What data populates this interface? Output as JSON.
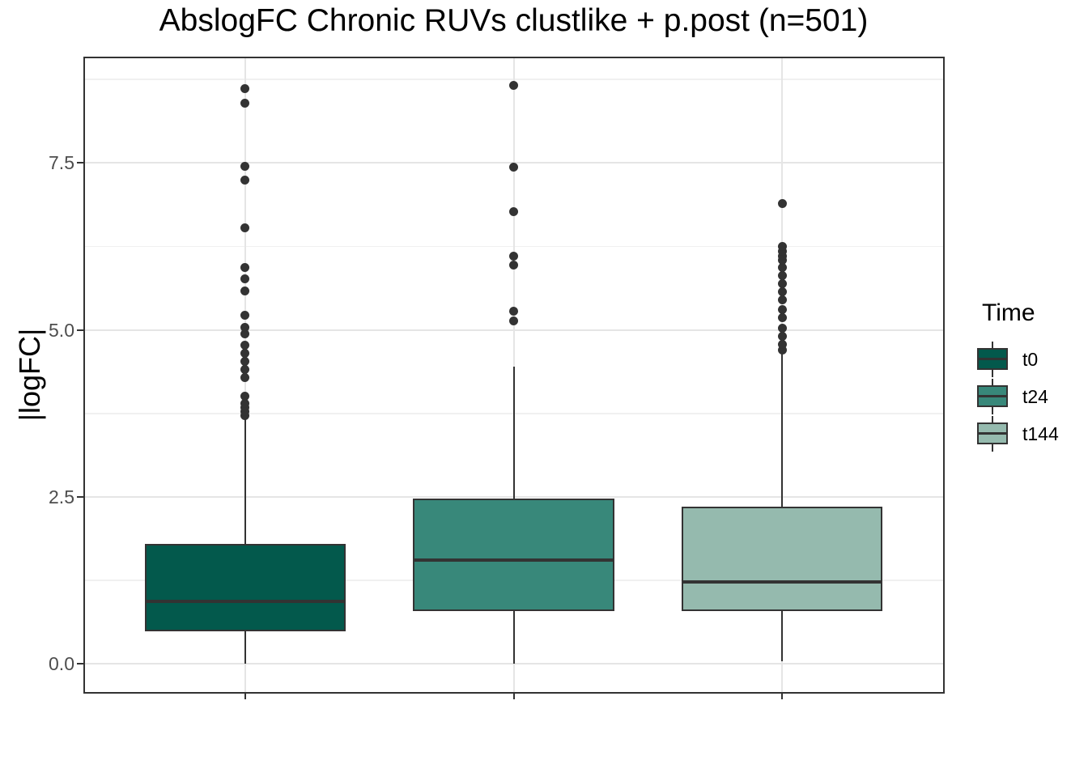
{
  "chart_data": {
    "type": "boxplot",
    "title": "AbslogFC Chronic RUVs clustlike + p.post (n=501)",
    "ylabel": "|logFC|",
    "xlabel": "",
    "ylim": [
      -0.42,
      9.08
    ],
    "y_major_ticks": [
      {
        "value": 0.0,
        "label": "0.0"
      },
      {
        "value": 2.5,
        "label": "2.5"
      },
      {
        "value": 5.0,
        "label": "5.0"
      },
      {
        "value": 7.5,
        "label": "7.5"
      }
    ],
    "y_minor_ticks": [
      1.25,
      3.75,
      6.25,
      8.75
    ],
    "x_tick_labels_visible": false,
    "grid": true,
    "legend": {
      "title": "Time",
      "position": "right"
    },
    "groups": [
      {
        "name": "t0",
        "fill": "#03594C",
        "whisker_low": 0.01,
        "q1": 0.49,
        "median": 0.94,
        "q3": 1.8,
        "whisker_high": 3.7,
        "outliers": [
          3.72,
          3.78,
          3.84,
          3.9,
          4.01,
          4.29,
          4.41,
          4.53,
          4.65,
          4.77,
          4.94,
          5.04,
          5.22,
          5.59,
          5.76,
          5.93,
          6.53,
          7.24,
          7.45,
          8.39,
          8.61
        ]
      },
      {
        "name": "t24",
        "fill": "#38887A",
        "whisker_low": 0.01,
        "q1": 0.79,
        "median": 1.55,
        "q3": 2.48,
        "whisker_high": 4.45,
        "outliers": [
          5.14,
          5.28,
          5.97,
          6.11,
          6.77,
          7.44,
          8.66
        ]
      },
      {
        "name": "t144",
        "fill": "#95BAAE",
        "whisker_low": 0.04,
        "q1": 0.79,
        "median": 1.23,
        "q3": 2.35,
        "whisker_high": 4.65,
        "outliers": [
          4.7,
          4.79,
          4.91,
          5.03,
          5.18,
          5.3,
          5.45,
          5.57,
          5.69,
          5.81,
          5.93,
          6.04,
          6.11,
          6.18,
          6.25,
          6.89
        ]
      }
    ],
    "colors": {
      "stroke": "#333333",
      "grid_major": "#E5E5E5",
      "grid_minor": "#F0F0F0",
      "tick_label": "#4D4D4D",
      "panel_border": "#333333",
      "background": "#FFFFFF"
    }
  }
}
